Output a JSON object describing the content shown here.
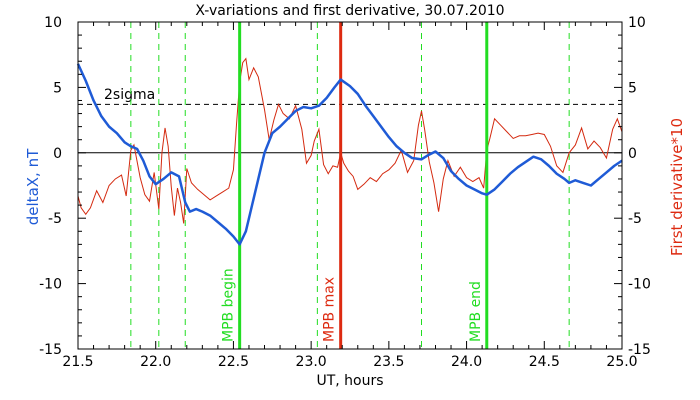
{
  "chart_data": {
    "type": "line",
    "title": "X-variations and first derivative, 30.07.2010",
    "xlabel": "UT, hours",
    "ylabel_left": "deltaX, nT",
    "ylabel_right": "First derivative*10",
    "xlim": [
      21.5,
      25.0
    ],
    "ylim": [
      -15,
      10
    ],
    "x_ticks": [
      "21.5",
      "22.0",
      "22.5",
      "23.0",
      "23.5",
      "24.0",
      "24.5",
      "25.0"
    ],
    "y_ticks": [
      "-15",
      "-10",
      "-5",
      "0",
      "5",
      "10"
    ],
    "sigma_label": "2sigma",
    "sigma_level": 3.7,
    "zero_level": 0,
    "colors": {
      "deltaX": "#1f5bd6",
      "derivative": "#d42a10",
      "mpb_begin": "#22dd22",
      "mpb_max": "#dd2a10",
      "dashed": "#22dd22",
      "axis": "#000000",
      "ylabel_left": "#1f5bd6",
      "ylabel_right": "#dd2a10"
    },
    "markers": [
      {
        "label": "MPB begin",
        "x": 22.54,
        "kind": "begin"
      },
      {
        "label": "MPB max",
        "x": 23.19,
        "kind": "max"
      },
      {
        "label": "MPB end",
        "x": 24.13,
        "kind": "end"
      }
    ],
    "dashed_lines_x": [
      21.84,
      22.02,
      22.19,
      23.04,
      23.71,
      24.66
    ],
    "series": [
      {
        "key": "deltaX",
        "x": [
          21.5,
          21.55,
          21.6,
          21.65,
          21.7,
          21.75,
          21.8,
          21.84,
          21.88,
          21.92,
          21.96,
          22.0,
          22.05,
          22.1,
          22.15,
          22.19,
          22.22,
          22.26,
          22.3,
          22.35,
          22.4,
          22.45,
          22.5,
          22.54,
          22.58,
          22.62,
          22.66,
          22.7,
          22.75,
          22.8,
          22.85,
          22.9,
          22.95,
          23.0,
          23.05,
          23.1,
          23.15,
          23.19,
          23.25,
          23.3,
          23.35,
          23.4,
          23.45,
          23.5,
          23.55,
          23.6,
          23.65,
          23.71,
          23.75,
          23.8,
          23.85,
          23.9,
          23.95,
          24.0,
          24.05,
          24.1,
          24.13,
          24.18,
          24.23,
          24.28,
          24.33,
          24.38,
          24.43,
          24.48,
          24.53,
          24.58,
          24.63,
          24.66,
          24.7,
          24.75,
          24.8,
          24.85,
          24.9,
          24.95,
          25.0
        ],
        "y": [
          6.8,
          5.5,
          4.0,
          2.8,
          2.0,
          1.5,
          0.8,
          0.5,
          0.3,
          -0.6,
          -1.8,
          -2.4,
          -2.0,
          -1.5,
          -1.8,
          -3.8,
          -4.5,
          -4.3,
          -4.5,
          -4.8,
          -5.3,
          -5.8,
          -6.4,
          -7.0,
          -6.0,
          -4.0,
          -2.0,
          0.0,
          1.5,
          2.0,
          2.6,
          3.2,
          3.5,
          3.4,
          3.6,
          4.2,
          5.0,
          5.6,
          5.1,
          4.5,
          3.6,
          2.8,
          2.0,
          1.2,
          0.5,
          0.0,
          -0.4,
          -0.5,
          -0.2,
          0.1,
          -0.4,
          -1.4,
          -2.0,
          -2.5,
          -2.8,
          -3.1,
          -3.2,
          -2.8,
          -2.2,
          -1.6,
          -1.1,
          -0.7,
          -0.3,
          -0.5,
          -1.0,
          -1.6,
          -2.0,
          -2.3,
          -2.1,
          -2.3,
          -2.5,
          -2.0,
          -1.5,
          -1.0,
          -0.6
        ]
      },
      {
        "key": "derivative",
        "x": [
          21.5,
          21.52,
          21.55,
          21.58,
          21.62,
          21.66,
          21.7,
          21.74,
          21.78,
          21.81,
          21.84,
          21.86,
          21.9,
          21.93,
          21.96,
          21.99,
          22.02,
          22.04,
          22.06,
          22.08,
          22.1,
          22.12,
          22.14,
          22.16,
          22.18,
          22.2,
          22.23,
          22.27,
          22.31,
          22.35,
          22.39,
          22.43,
          22.47,
          22.5,
          22.52,
          22.54,
          22.56,
          22.58,
          22.6,
          22.63,
          22.66,
          22.7,
          22.73,
          22.76,
          22.79,
          22.82,
          22.86,
          22.9,
          22.94,
          22.97,
          23.0,
          23.02,
          23.05,
          23.08,
          23.11,
          23.14,
          23.17,
          23.19,
          23.21,
          23.24,
          23.27,
          23.3,
          23.34,
          23.38,
          23.42,
          23.46,
          23.5,
          23.54,
          23.58,
          23.62,
          23.66,
          23.69,
          23.71,
          23.73,
          23.76,
          23.79,
          23.82,
          23.85,
          23.88,
          23.92,
          23.96,
          24.0,
          24.04,
          24.08,
          24.11,
          24.13,
          24.15,
          24.18,
          24.22,
          24.26,
          24.3,
          24.34,
          24.38,
          24.42,
          24.46,
          24.5,
          24.54,
          24.58,
          24.62,
          24.66,
          24.7,
          24.74,
          24.78,
          24.82,
          24.86,
          24.9,
          24.94,
          24.97,
          25.0
        ],
        "y": [
          -3.3,
          -4.2,
          -4.7,
          -4.2,
          -2.9,
          -3.8,
          -2.5,
          -2.0,
          -1.7,
          -3.3,
          0.2,
          0.6,
          -1.9,
          -3.2,
          -3.7,
          -1.5,
          -4.3,
          0.0,
          1.9,
          0.5,
          -2.6,
          -4.8,
          -2.7,
          -3.8,
          -5.4,
          -1.2,
          -2.3,
          -2.8,
          -3.2,
          -3.6,
          -3.3,
          -3.0,
          -2.7,
          -1.3,
          2.2,
          5.4,
          6.9,
          7.2,
          5.6,
          6.5,
          5.8,
          3.3,
          1.0,
          2.5,
          3.7,
          3.0,
          2.6,
          3.6,
          1.8,
          -0.8,
          -0.2,
          0.9,
          1.8,
          -0.9,
          -1.6,
          -1.0,
          -1.1,
          0.0,
          -0.8,
          -1.4,
          -1.8,
          -2.8,
          -2.4,
          -1.9,
          -2.2,
          -1.6,
          -1.3,
          -0.8,
          0.2,
          -1.5,
          -0.6,
          2.1,
          3.2,
          1.8,
          -0.7,
          -2.3,
          -4.5,
          -2.0,
          -0.6,
          -1.8,
          -1.1,
          -1.9,
          -2.2,
          -1.9,
          -2.7,
          0.2,
          1.1,
          2.6,
          2.1,
          1.6,
          1.1,
          1.3,
          1.3,
          1.4,
          1.5,
          1.4,
          0.5,
          -1.0,
          -1.5,
          0.0,
          0.6,
          1.9,
          0.3,
          0.9,
          0.4,
          -0.4,
          1.8,
          2.6,
          1.6
        ]
      }
    ]
  }
}
